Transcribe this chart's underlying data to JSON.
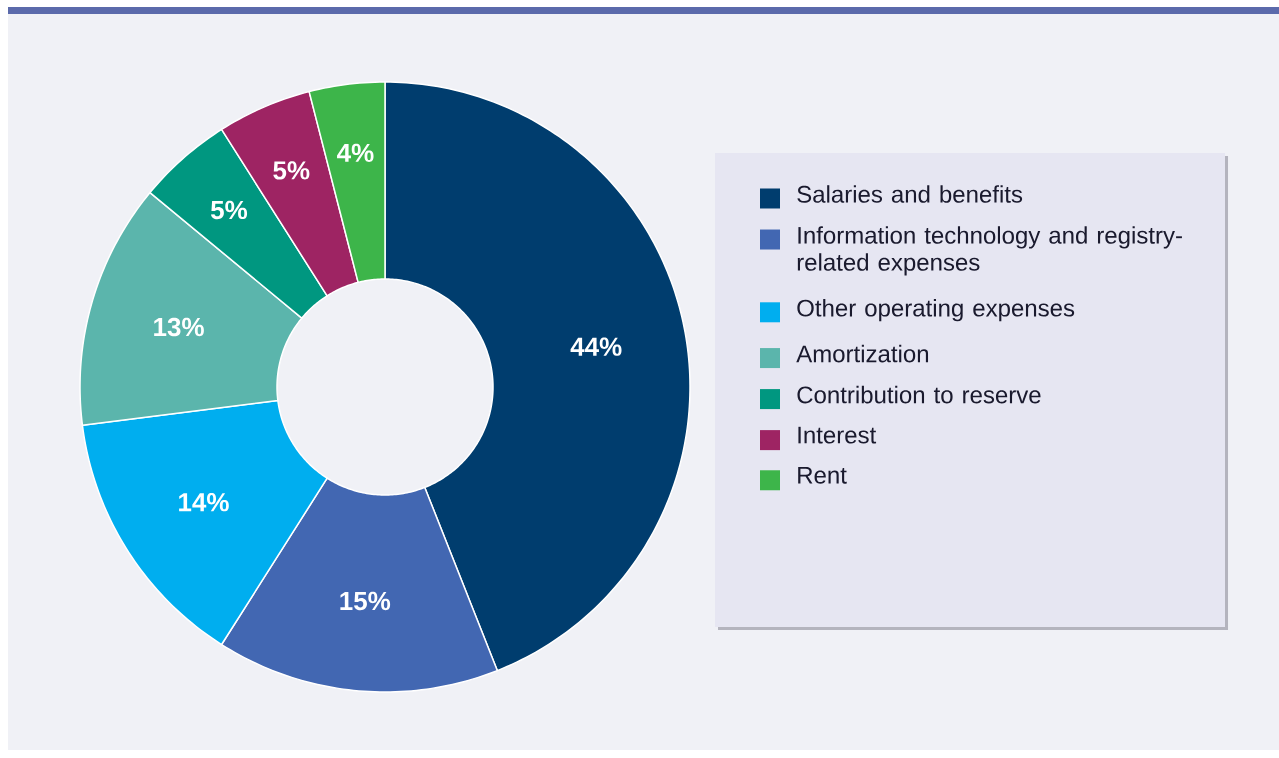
{
  "chart_data": {
    "type": "donut",
    "categories": [
      "Salaries and benefits",
      "Information technology and registry-related expenses",
      "Other operating expenses",
      "Amortization",
      "Contribution to reserve",
      "Interest",
      "Rent"
    ],
    "values": [
      44,
      15,
      14,
      13,
      5,
      5,
      4
    ],
    "colors": [
      "#003d6e",
      "#4267b2",
      "#00aeef",
      "#5bb5ac",
      "#009780",
      "#9e2463",
      "#3db54a"
    ],
    "value_labels": [
      "44%",
      "15%",
      "14%",
      "13%",
      "5%",
      "5%",
      "4%"
    ],
    "legend": "right"
  }
}
